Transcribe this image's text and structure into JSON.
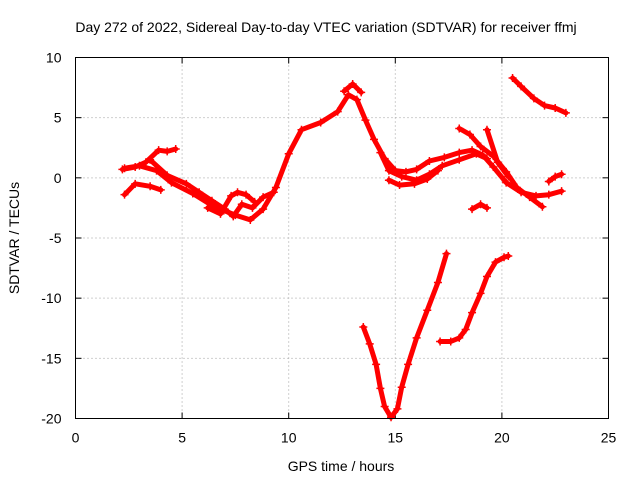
{
  "chart_data": {
    "type": "scatter",
    "title": "Day 272 of 2022, Sidereal Day-to-day VTEC variation (SDTVAR) for receiver ffmj",
    "xlabel": "GPS time / hours",
    "ylabel": "SDTVAR / TECUs",
    "xlim": [
      0,
      25
    ],
    "ylim": [
      -20,
      10
    ],
    "x_ticks": [
      "0",
      "5",
      "10",
      "15",
      "20",
      "25"
    ],
    "y_ticks": [
      "10",
      "5",
      "0",
      "-5",
      "-10",
      "-15",
      "-20"
    ],
    "grid": true,
    "legend": "none",
    "marker": "plus",
    "color": "#ff0000",
    "series": [
      {
        "values": [
          [
            2.2,
            0.7
          ],
          [
            2.8,
            0.9
          ],
          [
            3.3,
            1.3
          ],
          [
            3.9,
            2.3
          ],
          [
            4.3,
            2.2
          ],
          [
            4.7,
            2.4
          ]
        ]
      },
      {
        "values": [
          [
            2.3,
            0.8
          ],
          [
            3.0,
            1.0
          ],
          [
            3.8,
            0.6
          ],
          [
            4.5,
            -0.4
          ],
          [
            5.5,
            -1.3
          ],
          [
            6.5,
            -2.4
          ],
          [
            7.5,
            -3.1
          ],
          [
            8.2,
            -3.5
          ],
          [
            8.8,
            -2.6
          ],
          [
            9.4,
            -0.8
          ],
          [
            10.0,
            2.0
          ],
          [
            10.6,
            4.0
          ],
          [
            11.5,
            4.6
          ],
          [
            12.3,
            5.5
          ],
          [
            12.8,
            6.9
          ],
          [
            13.2,
            6.5
          ],
          [
            13.6,
            4.8
          ],
          [
            14.0,
            3.2
          ],
          [
            14.5,
            1.6
          ],
          [
            15.0,
            0.6
          ],
          [
            15.5,
            0.5
          ],
          [
            16.0,
            0.7
          ],
          [
            16.6,
            1.4
          ],
          [
            17.3,
            1.7
          ],
          [
            18.0,
            2.1
          ],
          [
            18.6,
            2.3
          ],
          [
            19.1,
            1.9
          ],
          [
            19.6,
            0.9
          ],
          [
            20.2,
            -0.4
          ],
          [
            20.9,
            -1.2
          ],
          [
            21.6,
            -1.5
          ],
          [
            22.2,
            -1.4
          ],
          [
            22.8,
            -1.1
          ]
        ]
      },
      {
        "values": [
          [
            2.3,
            -1.4
          ],
          [
            2.8,
            -0.5
          ],
          [
            3.5,
            -0.7
          ],
          [
            4.0,
            -1.0
          ]
        ]
      },
      {
        "values": [
          [
            3.5,
            1.5
          ],
          [
            4.3,
            0.2
          ],
          [
            5.2,
            -0.5
          ],
          [
            5.8,
            -1.2
          ],
          [
            6.4,
            -1.9
          ],
          [
            7.0,
            -2.6
          ],
          [
            7.4,
            -3.2
          ],
          [
            7.8,
            -2.2
          ],
          [
            8.3,
            -2.5
          ],
          [
            8.8,
            -1.6
          ],
          [
            9.3,
            -1.2
          ]
        ]
      },
      {
        "values": [
          [
            6.2,
            -2.5
          ],
          [
            6.8,
            -3.0
          ],
          [
            7.3,
            -1.5
          ],
          [
            7.6,
            -1.2
          ],
          [
            8.0,
            -1.4
          ],
          [
            8.4,
            -2.0
          ]
        ]
      },
      {
        "values": [
          [
            12.6,
            7.2
          ],
          [
            13.0,
            7.8
          ],
          [
            13.4,
            7.1
          ]
        ]
      },
      {
        "values": [
          [
            14.3,
            2.1
          ],
          [
            14.7,
            0.6
          ],
          [
            15.3,
            0.1
          ],
          [
            16.0,
            -0.2
          ],
          [
            16.6,
            0.3
          ],
          [
            17.2,
            1.0
          ],
          [
            18.0,
            1.5
          ],
          [
            18.8,
            2.0
          ],
          [
            19.3,
            1.6
          ]
        ]
      },
      {
        "values": [
          [
            14.7,
            -0.2
          ],
          [
            15.2,
            -0.6
          ],
          [
            15.9,
            -0.5
          ],
          [
            16.5,
            -0.1
          ],
          [
            17.0,
            0.6
          ]
        ]
      },
      {
        "values": [
          [
            18.0,
            4.1
          ],
          [
            18.5,
            3.6
          ],
          [
            19.0,
            2.6
          ],
          [
            19.6,
            1.8
          ],
          [
            20.2,
            0.5
          ],
          [
            20.7,
            -0.8
          ],
          [
            21.3,
            -1.6
          ],
          [
            21.9,
            -2.4
          ]
        ]
      },
      {
        "values": [
          [
            19.3,
            4.0
          ],
          [
            19.8,
            1.3
          ],
          [
            20.3,
            0.1
          ]
        ]
      },
      {
        "values": [
          [
            22.2,
            -0.3
          ],
          [
            22.5,
            0.1
          ],
          [
            22.8,
            0.3
          ]
        ]
      },
      {
        "values": [
          [
            18.6,
            -2.6
          ],
          [
            19.0,
            -2.2
          ],
          [
            19.3,
            -2.5
          ]
        ]
      },
      {
        "values": [
          [
            20.5,
            8.3
          ],
          [
            20.9,
            7.6
          ],
          [
            21.5,
            6.6
          ],
          [
            22.0,
            6.0
          ],
          [
            22.5,
            5.8
          ],
          [
            23.0,
            5.4
          ]
        ]
      },
      {
        "values": [
          [
            13.5,
            -12.4
          ],
          [
            13.8,
            -13.8
          ],
          [
            14.1,
            -15.5
          ],
          [
            14.3,
            -17.5
          ],
          [
            14.5,
            -19.0
          ],
          [
            14.8,
            -19.9
          ],
          [
            15.1,
            -19.2
          ],
          [
            15.3,
            -17.4
          ],
          [
            15.6,
            -15.5
          ],
          [
            16.0,
            -13.3
          ],
          [
            16.5,
            -11.0
          ],
          [
            17.0,
            -8.7
          ],
          [
            17.4,
            -6.3
          ]
        ]
      },
      {
        "values": [
          [
            17.1,
            -13.6
          ],
          [
            17.6,
            -13.6
          ],
          [
            18.0,
            -13.3
          ],
          [
            18.3,
            -12.6
          ],
          [
            18.6,
            -11.2
          ],
          [
            19.0,
            -9.6
          ],
          [
            19.3,
            -8.2
          ],
          [
            19.7,
            -7.0
          ],
          [
            20.1,
            -6.6
          ],
          [
            20.3,
            -6.5
          ]
        ]
      }
    ]
  }
}
